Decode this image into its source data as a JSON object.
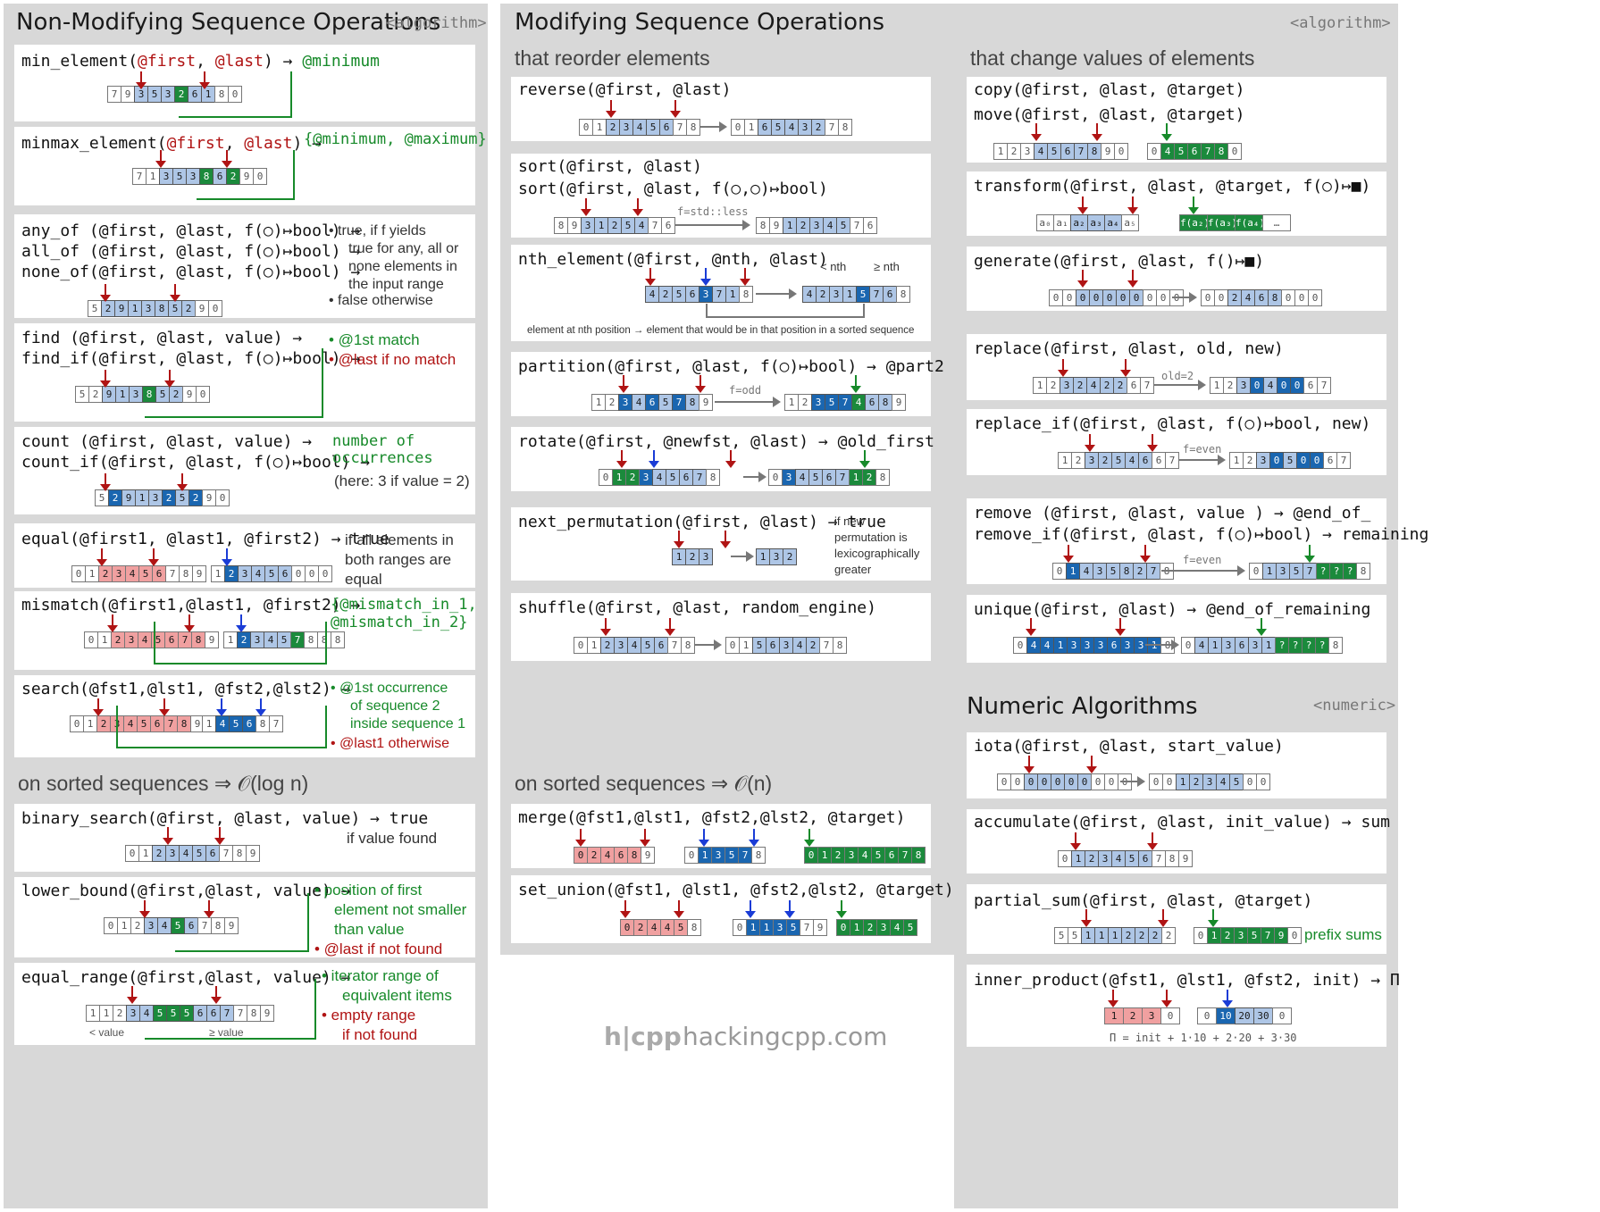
{
  "panels": {
    "nonmod": {
      "title": "Non-Modifying Sequence Operations",
      "tag": "<algorithm>",
      "sorted": "on sorted sequences ⇒ 𝒪(log n)"
    },
    "mod": {
      "title": "Modifying Sequence Operations",
      "tag": "<algorithm>",
      "reorder": "that reorder elements",
      "change": "that change values of elements",
      "sorted": "on sorted sequences ⇒ 𝒪(n)"
    },
    "numeric": {
      "title": "Numeric Algorithms",
      "tag": "<numeric>"
    }
  },
  "cards": {
    "min_element": {
      "fn": "min_element(",
      "a1": "@first",
      "c": ", ",
      "a2": "@last",
      "e": ") → ",
      "ret": "@minimum"
    },
    "minmax_element": {
      "fn": "minmax_element(",
      "a1": "@first",
      "c": ", ",
      "a2": "@last",
      "e": ") → ",
      "ret": "{@minimum, @maximum}"
    },
    "any_of": {
      "l1": "any_of (@first, @last, f(○)↦bool) →",
      "l2": "all_of (@first, @last, f(○)↦bool) →",
      "l3": "none_of(@first, @last, f(○)↦bool) →",
      "n1": "•  true, if f yields",
      "n2": "true for any, all or",
      "n3": "none elements in",
      "n4": "the input range",
      "n5": "•  false otherwise"
    },
    "find": {
      "l1": "find    (@first, @last, value)   →",
      "l2": "find_if(@first, @last, f(○)↦bool) →",
      "n1": "•  @1st match",
      "n2": "•  @last if no match"
    },
    "count": {
      "l1": "count    (@first, @last, value)   →",
      "l2": "count_if(@first, @last, f(○)↦bool) →",
      "n1": "number of",
      "n2": "occurrences",
      "n3": "(here: 3 if value = 2)"
    },
    "equal": {
      "l1": "equal(@first1, @last1, @first2) → true",
      "n1": "if all elements in",
      "n2": "both ranges are",
      "n3": "equal"
    },
    "mismatch": {
      "l1": "mismatch(@first1,@last1, @first2) →",
      "n1": "{@mismatch_in_1,",
      "n2": " @mismatch_in_2}"
    },
    "search": {
      "l1": "search(@fst1,@lst1, @fst2,@lst2) →",
      "n1": "•  @1st occurrence",
      "n2": "of sequence 2",
      "n3": "inside sequence 1",
      "n4": "•  @last1 otherwise"
    },
    "binary_search": {
      "l1": "binary_search(@first, @last, value) → true",
      "n1": "if value found"
    },
    "lower_bound": {
      "l1": "lower_bound(@first,@last, value) →",
      "n1": "•  position of first",
      "n2": "element not smaller",
      "n3": "than value",
      "n4": "•  @last if not found"
    },
    "equal_range": {
      "l1": "equal_range(@first,@last, value) →",
      "n1": "•  iterator range of",
      "n2": "equivalent items",
      "n3": "•  empty range",
      "n4": "if not found",
      "lt": "< value",
      "ge": "≥ value"
    },
    "reverse": {
      "l1": "reverse(@first, @last)"
    },
    "sort": {
      "l1": "sort(@first, @last)",
      "l2": "sort(@first, @last, f(○,○)↦bool)",
      "lbl": "f=std::less"
    },
    "nth_element": {
      "l1": "nth_element(@first, @nth, @last)",
      "lt": "< nth",
      "ge": "≥ nth",
      "cap": "element at nth position → element that would be in that position in a sorted sequence"
    },
    "partition": {
      "l1": "partition(@first, @last, f(○)↦bool) → @part2",
      "lbl": "f=odd"
    },
    "rotate": {
      "l1": "rotate(@first, @newfst, @last) → @old_first"
    },
    "next_permutation": {
      "l1": "next_permutation(@first, @last) → true",
      "n1": "if new",
      "n2": "permutation is",
      "n3": "lexicographically",
      "n4": "greater"
    },
    "shuffle": {
      "l1": "shuffle(@first, @last, random_engine)"
    },
    "merge": {
      "l1": "merge(@fst1,@lst1, @fst2,@lst2, @target)"
    },
    "set_union": {
      "l1": "set_union(@fst1, @lst1, @fst2,@lst2, @target)"
    },
    "copy": {
      "l1": "copy(@first, @last, @target)",
      "l2": "move(@first, @last, @target)"
    },
    "transform": {
      "l1": "transform(@first, @last, @target, f(○)↦■)"
    },
    "generate": {
      "l1": "generate(@first, @last, f()↦■)"
    },
    "replace": {
      "l1": "replace(@first, @last, old, new)",
      "lbl": "old=2"
    },
    "replace_if": {
      "l1": "replace_if(@first, @last, f(○)↦bool, new)",
      "lbl": "f=even"
    },
    "remove": {
      "l1": "remove   (@first, @last, value    ) → @end_of_",
      "l2": "remove_if(@first, @last, f(○)↦bool) → remaining",
      "lbl": "f=even"
    },
    "unique": {
      "l1": "unique(@first, @last) → @end_of_remaining"
    },
    "iota": {
      "l1": "iota(@first, @last, start_value)"
    },
    "accumulate": {
      "l1": "accumulate(@first, @last, init_value) → sum"
    },
    "partial_sum": {
      "l1": "partial_sum(@first, @last, @target)",
      "n1": "prefix sums"
    },
    "inner_product": {
      "l1": "inner_product(@fst1, @lst1, @fst2, init) → Π",
      "cap": "Π = init + 1·10 + 2·20 + 3·30"
    }
  },
  "sequences": {
    "min_element": "7 9 3 5 3 2 6 1 8 0",
    "minmax_element": "7 1 3 5 3 8 6 2 9 0",
    "any_of": "5 2 9 1 3 8 5 2 9 0",
    "find": "5 2 9 1 3 8 5 2 9 0",
    "count": "5 2 9 1 3 2 5 2 9 0",
    "equal_a": "0 1 2 3 4 5 6 7 8 9",
    "equal_b": "1 2 3 4 5 6 0 0 0",
    "mismatch_a": "0 1 2 3 4 5 6 7 8 9",
    "mismatch_b": "1 2 3 4 5 7 8 8 8",
    "search_a": "0 1 2 3 4 5 6 7 8 9",
    "search_b": "1 4 5 6 8 7",
    "binary_search": "0 1 2 3 4 5 6 7 8 9",
    "lower_bound": "0 1 2 3 4 5 6 7 8 9",
    "equal_range": "1 1 2 3 4 5 5 5 6 6 7 7 8 9",
    "reverse_a": "0 1 2 3 4 5 6 7 8",
    "reverse_b": "0 1 6 5 4 3 2 7 8",
    "sort_a": "8 9 3 1 2 5 4 7 6",
    "sort_b": "8 9 1 2 3 4 5 7 6",
    "nth_a": "4 2 5 6 3 7 1 8",
    "nth_b": "4 2 3 1 5 7 6 8",
    "partition_a": "1 2 3 4 6 5 7 8 9",
    "partition_b": "1 2 3 5 7 4 6 8 9",
    "rotate_a": "0 1 2 3 4 5 6 7 8",
    "rotate_b": "0 3 4 5 6 7 1 2 8",
    "perm_a": "1 2 3",
    "perm_b": "1 3 2",
    "shuffle_a": "0 1 2 3 4 5 6 7 8",
    "shuffle_b": "0 1 5 6 3 4 2 7 8",
    "merge_a": "0 2 4 6 8 9",
    "merge_b": "0 1 3 5 7 8",
    "merge_c": "0 1 2 3 4 5 6 7 8",
    "union_a": "0 2 4 4 5 8",
    "union_b": "0 1 1 3 5 7 9",
    "union_c": "0 1 2 3 4 5",
    "copy_a": "1 2 3 4 5 6 7 8 9 0",
    "copy_b": "0 4 5 6 7 8 0",
    "transform_a": "a₀ a₁ a₂ a₃ a₄ a₅",
    "transform_b": "f(a₂) f(a₃) f(a₄) …",
    "generate_a": "0 0 0 0 0 0 0 0 0 0",
    "generate_b": "0 0 2 4 6 8 0 0 0",
    "replace_a": "1 2 3 2 4 2 2 6 7",
    "replace_b": "1 2 3 0 4 0 0 6 7",
    "replace_if_a": "1 2 3 2 5 4 6 6 7",
    "replace_if_b": "1 2 3 0 5 0 0 6 7",
    "remove_a": "0 1 4 3 5 8 2 7 8",
    "remove_b": "0 1 3 5 7 ? ? ? 8",
    "unique_a": "0 4 4 1 3 3 3 6 3 3 1 8",
    "unique_b": "0 4 1 3 6 3 1 ? ? ? ? 8",
    "iota_a": "0 0 0 0 0 0 0 0 0 0",
    "iota_b": "0 0 1 2 3 4 5 0 0",
    "accumulate": "0 1 2 3 4 5 6 7 8 9",
    "psum_a": "5 5 1 1 1 2 2 2 2",
    "psum_b": "0 1 2 3 5 7 9 0",
    "inner_a": "1 2 3 0",
    "inner_b": "0 10 20 30 0"
  },
  "logo": {
    "mark": "h|cpp",
    "text": "hackingcpp.com"
  },
  "colors": {
    "panel": "#d8d8d8",
    "red": "#b01414",
    "blue": "#1a3cd6",
    "green": "#178a2a",
    "cell_on": "#aec6e6",
    "cell_hi": "#1a66b0",
    "cell_green": "#1b8a3c",
    "cell_pink": "#f0a0a0"
  }
}
